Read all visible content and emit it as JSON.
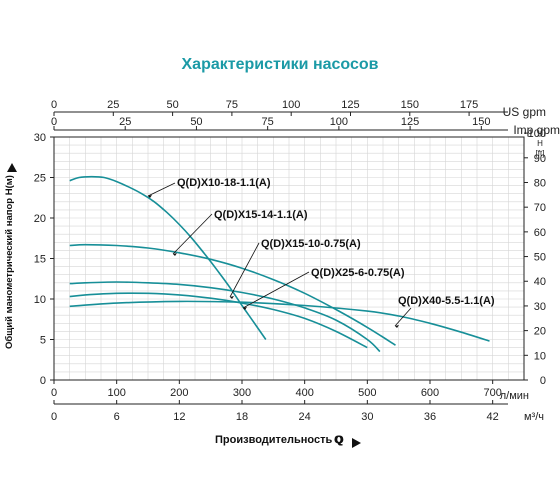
{
  "chart_data": {
    "type": "line",
    "title": "Характеристики насосов",
    "xlabel": "Производительность Q",
    "ylabel": "Общий манометрический напор H(м)",
    "grid": true,
    "x_unit_lmin": "л/мин",
    "x_unit_m3h": "м³/ч",
    "top_unit_us": "US gpm",
    "top_unit_imp": "Imp gpm",
    "right_unit_h": "H",
    "right_unit_ft": "[ft]",
    "xlim": [
      0,
      700
    ],
    "ylim": [
      0,
      30
    ],
    "x_ticks_lmin": [
      "0",
      "100",
      "200",
      "300",
      "400",
      "500",
      "600",
      "700"
    ],
    "x_ticks_m3h": [
      "0",
      "6",
      "12",
      "18",
      "24",
      "30",
      "36",
      "42"
    ],
    "top_ticks_us": [
      "0",
      "25",
      "50",
      "75",
      "100",
      "125",
      "150",
      "175"
    ],
    "top_ticks_imp": [
      "0",
      "25",
      "50",
      "75",
      "100",
      "125",
      "150"
    ],
    "y_ticks": [
      "0",
      "5",
      "10",
      "15",
      "20",
      "25",
      "30"
    ],
    "right_ticks_ft": [
      "0",
      "10",
      "20",
      "30",
      "40",
      "50",
      "60",
      "70",
      "80",
      "90",
      "100"
    ],
    "series": [
      {
        "name": "Q(D)X10-18-1.1(A)",
        "x": [
          25,
          40,
          60,
          80,
          100,
          120,
          140,
          160,
          180,
          200,
          220,
          240,
          260,
          280,
          300,
          320,
          338
        ],
        "y": [
          24.6,
          25.0,
          25.1,
          25.0,
          24.5,
          23.8,
          23.0,
          22.0,
          20.7,
          19.2,
          17.5,
          15.6,
          13.6,
          11.5,
          9.2,
          7.0,
          5.0
        ]
      },
      {
        "name": "Q(D)X15-14-1.1(A)",
        "x": [
          25,
          50,
          100,
          150,
          200,
          250,
          300,
          350,
          400,
          450,
          500,
          545
        ],
        "y": [
          16.6,
          16.7,
          16.6,
          16.3,
          15.7,
          14.9,
          13.8,
          12.4,
          10.7,
          8.7,
          6.5,
          4.3
        ]
      },
      {
        "name": "Q(D)X15-10-0.75(A)",
        "x": [
          25,
          50,
          100,
          150,
          200,
          250,
          300,
          350,
          400,
          450,
          500,
          520
        ],
        "y": [
          11.9,
          12.0,
          12.1,
          12.0,
          11.8,
          11.4,
          10.8,
          10.0,
          8.9,
          7.4,
          5.0,
          3.5
        ]
      },
      {
        "name": "Q(D)X25-6-0.75(A)",
        "x": [
          25,
          50,
          100,
          150,
          200,
          250,
          300,
          350,
          400,
          450,
          500
        ],
        "y": [
          10.3,
          10.5,
          10.7,
          10.7,
          10.5,
          10.1,
          9.5,
          8.7,
          7.6,
          6.0,
          4.0
        ]
      },
      {
        "name": "Q(D)X40-5.5-1.1(A)",
        "x": [
          25,
          100,
          200,
          300,
          400,
          500,
          550,
          600,
          650,
          695
        ],
        "y": [
          9.1,
          9.5,
          9.7,
          9.6,
          9.2,
          8.5,
          7.9,
          7.0,
          5.9,
          4.8
        ]
      }
    ]
  }
}
